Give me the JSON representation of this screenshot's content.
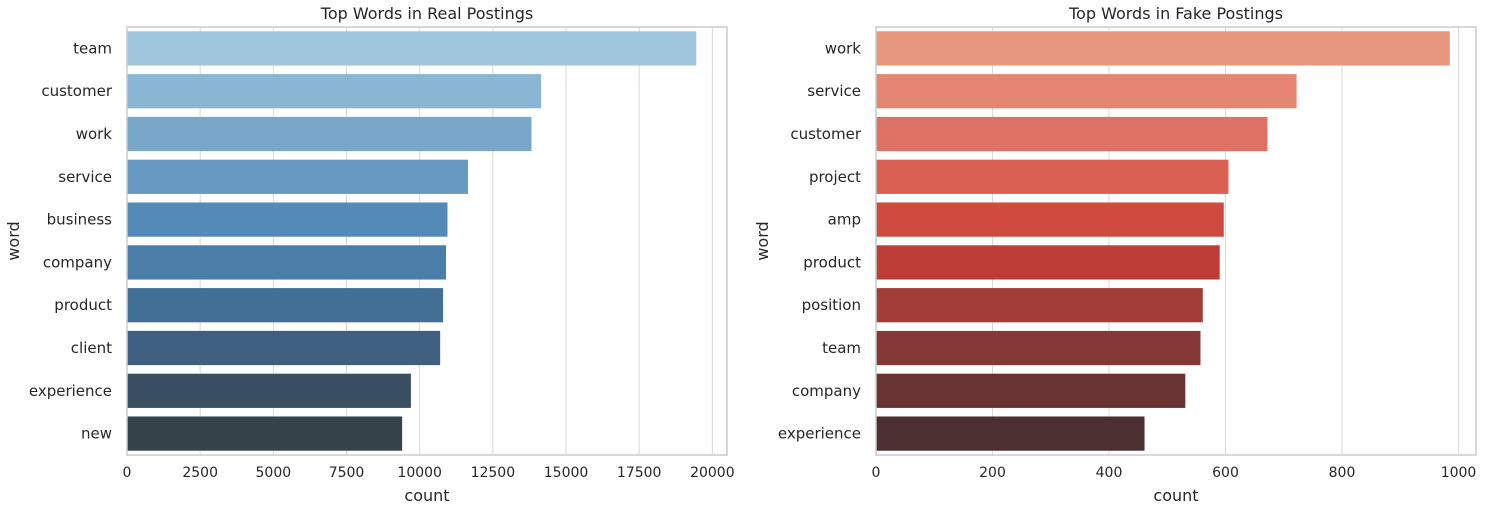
{
  "chart_data": [
    {
      "type": "bar",
      "orientation": "horizontal",
      "title": "Top Words in Real Postings",
      "xlabel": "count",
      "ylabel": "word",
      "categories": [
        "team",
        "customer",
        "work",
        "service",
        "business",
        "company",
        "product",
        "client",
        "experience",
        "new"
      ],
      "values": [
        19450,
        14150,
        13820,
        11650,
        10950,
        10900,
        10800,
        10700,
        9700,
        9400
      ],
      "xlim": [
        0,
        20500
      ],
      "xticks": [
        0,
        2500,
        5000,
        7500,
        10000,
        12500,
        15000,
        17500,
        20000
      ],
      "grid": "vertical",
      "colors": [
        "#9fc5dd",
        "#8ab6d3",
        "#79a7c9",
        "#6799c2",
        "#548ab7",
        "#4a7ea9",
        "#416f95",
        "#3e5f7f",
        "#3a4f62",
        "#36434b"
      ]
    },
    {
      "type": "bar",
      "orientation": "horizontal",
      "title": "Top Words in Fake Postings",
      "xlabel": "count",
      "ylabel": "word",
      "categories": [
        "work",
        "service",
        "customer",
        "project",
        "amp",
        "product",
        "position",
        "team",
        "company",
        "experience"
      ],
      "values": [
        985,
        722,
        672,
        605,
        597,
        590,
        561,
        557,
        531,
        461
      ],
      "xlim": [
        0,
        1030
      ],
      "xticks": [
        0,
        200,
        400,
        600,
        800,
        1000
      ],
      "grid": "vertical",
      "colors": [
        "#e8977f",
        "#e48673",
        "#df7264",
        "#d96052",
        "#cf4a3f",
        "#be3d37",
        "#a23d38",
        "#853835",
        "#693233",
        "#4c3031"
      ]
    }
  ]
}
